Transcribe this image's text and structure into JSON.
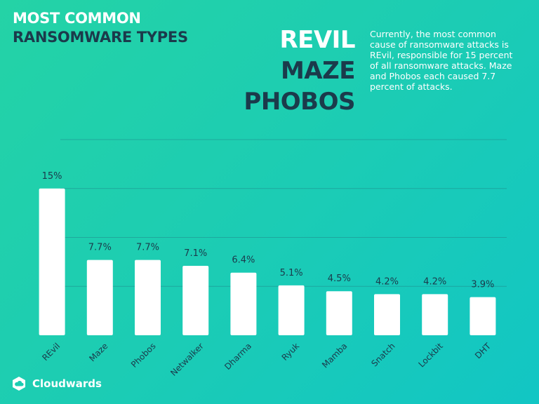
{
  "header": {
    "title_line1": "MOST COMMON",
    "title_line2": "RANSOMWARE TYPES",
    "highlights": [
      "REVIL",
      "MAZE",
      "PHOBOS"
    ],
    "description": "Currently, the most common cause of ransomware attacks is REvil, responsible for 15 percent of all ransomware attacks. Maze and Phobos each caused 7.7 percent of attacks."
  },
  "brand": {
    "name": "Cloudwards",
    "icon": "cloud-icon"
  },
  "colors": {
    "background_start": "#24d3a6",
    "background_end": "#12c6c4",
    "bar": "#ffffff",
    "dark_text": "#1b3a4b",
    "gridline": "#1f8f8f"
  },
  "chart_data": {
    "type": "bar",
    "categories": [
      "REvil",
      "Maze",
      "Phobos",
      "Netwalker",
      "Dharma",
      "Ryuk",
      "Mamba",
      "Snatch",
      "Lockbit",
      "DHT"
    ],
    "values": [
      15,
      7.7,
      7.7,
      7.1,
      6.4,
      5.1,
      4.5,
      4.2,
      4.2,
      3.9
    ],
    "labels": [
      "15%",
      "7.7%",
      "7.7%",
      "7.1%",
      "6.4%",
      "5.1%",
      "4.5%",
      "4.2%",
      "4.2%",
      "3.9%"
    ],
    "title": "",
    "xlabel": "",
    "ylabel": "",
    "ylim": [
      0,
      20
    ],
    "grid": true,
    "legend": "none"
  }
}
